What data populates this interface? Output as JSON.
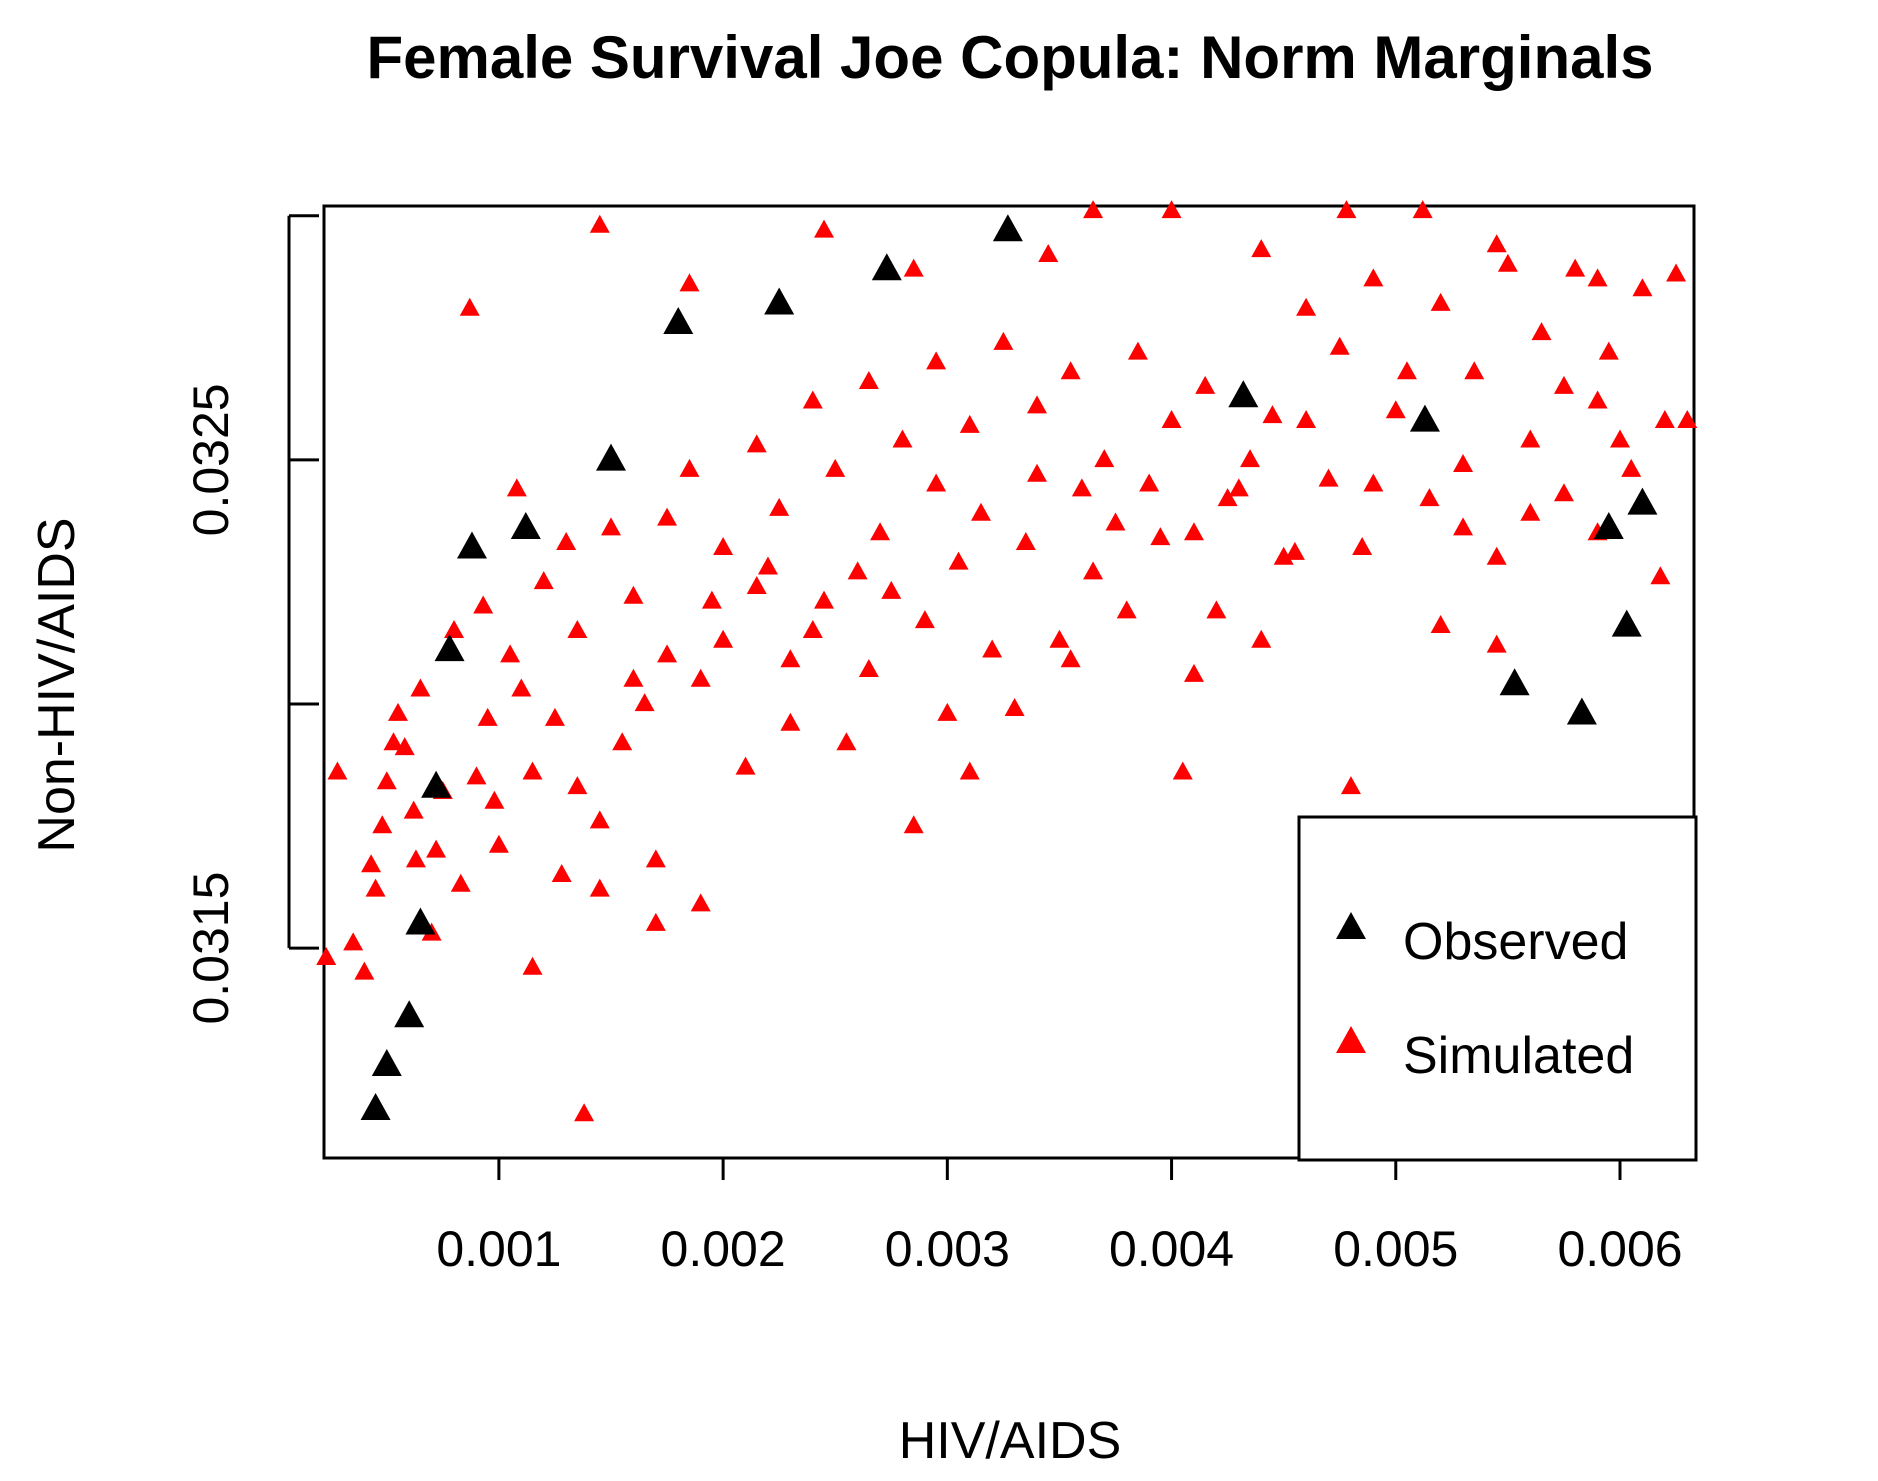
{
  "chart_data": {
    "type": "scatter",
    "title": "Female Survival Joe Copula: Norm Marginals",
    "xlabel": "HIV/AIDS",
    "ylabel": "Non-HIV/AIDS",
    "xlim": [
      0.00022,
      0.00633
    ],
    "ylim": [
      0.03107,
      0.03302
    ],
    "x_ticks": [
      {
        "value": 0.001,
        "label": "0.001"
      },
      {
        "value": 0.002,
        "label": "0.002"
      },
      {
        "value": 0.003,
        "label": "0.003"
      },
      {
        "value": 0.004,
        "label": "0.004"
      },
      {
        "value": 0.005,
        "label": "0.005"
      },
      {
        "value": 0.006,
        "label": "0.006"
      }
    ],
    "y_ticks": [
      {
        "value": 0.0315,
        "label": "0.0315"
      },
      {
        "value": 0.032,
        "label": ""
      },
      {
        "value": 0.0325,
        "label": "0.0325"
      },
      {
        "value": 0.033,
        "label": ""
      }
    ],
    "legend": {
      "position": "bottom-right",
      "entries": [
        {
          "label": "Observed",
          "color": "#000000"
        },
        {
          "label": "Simulated",
          "color": "#ff0000"
        }
      ]
    },
    "series": [
      {
        "name": "Observed",
        "color": "#000000",
        "points": [
          [
            0.00045,
            0.03117
          ],
          [
            0.0005,
            0.03126
          ],
          [
            0.0006,
            0.03136
          ],
          [
            0.00065,
            0.03155
          ],
          [
            0.00072,
            0.03183
          ],
          [
            0.00078,
            0.03211
          ],
          [
            0.00088,
            0.03232
          ],
          [
            0.00112,
            0.03236
          ],
          [
            0.0015,
            0.0325
          ],
          [
            0.0018,
            0.03278
          ],
          [
            0.00225,
            0.03282
          ],
          [
            0.00273,
            0.03289
          ],
          [
            0.00327,
            0.03297
          ],
          [
            0.00432,
            0.03263
          ],
          [
            0.00513,
            0.03258
          ],
          [
            0.00553,
            0.03204
          ],
          [
            0.00583,
            0.03198
          ],
          [
            0.00595,
            0.03236
          ],
          [
            0.00603,
            0.03216
          ],
          [
            0.0061,
            0.03241
          ]
        ]
      },
      {
        "name": "Simulated",
        "color": "#ff0000",
        "points": [
          [
            0.00023,
            0.03148
          ],
          [
            0.00028,
            0.03186
          ],
          [
            0.00035,
            0.03151
          ],
          [
            0.0004,
            0.03145
          ],
          [
            0.00045,
            0.03162
          ],
          [
            0.00048,
            0.03175
          ],
          [
            0.00053,
            0.03192
          ],
          [
            0.00058,
            0.03191
          ],
          [
            0.00063,
            0.03168
          ],
          [
            0.0007,
            0.03153
          ],
          [
            0.00075,
            0.03182
          ],
          [
            0.00083,
            0.03163
          ],
          [
            0.0009,
            0.03185
          ],
          [
            0.001,
            0.03171
          ],
          [
            0.0011,
            0.03203
          ],
          [
            0.00115,
            0.03186
          ],
          [
            0.00125,
            0.03197
          ],
          [
            0.00135,
            0.03183
          ],
          [
            0.00145,
            0.03176
          ],
          [
            0.00155,
            0.03192
          ],
          [
            0.00165,
            0.032
          ],
          [
            0.00175,
            0.0321
          ],
          [
            0.0019,
            0.03205
          ],
          [
            0.002,
            0.03213
          ],
          [
            0.00215,
            0.03224
          ],
          [
            0.0023,
            0.03209
          ],
          [
            0.00245,
            0.03221
          ],
          [
            0.0026,
            0.03227
          ],
          [
            0.00275,
            0.03223
          ],
          [
            0.0029,
            0.03217
          ],
          [
            0.00305,
            0.03229
          ],
          [
            0.0032,
            0.03211
          ],
          [
            0.00335,
            0.03233
          ],
          [
            0.0035,
            0.03213
          ],
          [
            0.00365,
            0.03227
          ],
          [
            0.0038,
            0.03219
          ],
          [
            0.00395,
            0.03234
          ],
          [
            0.0041,
            0.03206
          ],
          [
            0.00425,
            0.03242
          ],
          [
            0.0044,
            0.03213
          ],
          [
            0.00455,
            0.03231
          ],
          [
            0.0047,
            0.03246
          ],
          [
            0.00485,
            0.03232
          ],
          [
            0.005,
            0.0326
          ],
          [
            0.00515,
            0.03242
          ],
          [
            0.0053,
            0.03249
          ],
          [
            0.00545,
            0.0323
          ],
          [
            0.0056,
            0.03254
          ],
          [
            0.00575,
            0.03243
          ],
          [
            0.0059,
            0.03262
          ],
          [
            0.00605,
            0.03248
          ],
          [
            0.0062,
            0.03258
          ],
          [
            0.0005,
            0.03184
          ],
          [
            0.00062,
            0.03178
          ],
          [
            0.0008,
            0.03215
          ],
          [
            0.00095,
            0.03197
          ],
          [
            0.00105,
            0.0321
          ],
          [
            0.0012,
            0.03225
          ],
          [
            0.00135,
            0.03215
          ],
          [
            0.0015,
            0.03236
          ],
          [
            0.0016,
            0.03222
          ],
          [
            0.00175,
            0.03238
          ],
          [
            0.00185,
            0.03248
          ],
          [
            0.002,
            0.03232
          ],
          [
            0.00215,
            0.03253
          ],
          [
            0.00225,
            0.0324
          ],
          [
            0.0024,
            0.03262
          ],
          [
            0.0025,
            0.03248
          ],
          [
            0.00265,
            0.03266
          ],
          [
            0.0028,
            0.03254
          ],
          [
            0.00295,
            0.0327
          ],
          [
            0.0031,
            0.03257
          ],
          [
            0.00325,
            0.03274
          ],
          [
            0.0034,
            0.03261
          ],
          [
            0.00355,
            0.03268
          ],
          [
            0.0037,
            0.0325
          ],
          [
            0.00385,
            0.03272
          ],
          [
            0.004,
            0.03258
          ],
          [
            0.00415,
            0.03265
          ],
          [
            0.0043,
            0.03244
          ],
          [
            0.00445,
            0.03259
          ],
          [
            0.0046,
            0.03281
          ],
          [
            0.00475,
            0.03273
          ],
          [
            0.0049,
            0.03287
          ],
          [
            0.00505,
            0.03268
          ],
          [
            0.0052,
            0.03282
          ],
          [
            0.00535,
            0.03268
          ],
          [
            0.0055,
            0.0329
          ],
          [
            0.00565,
            0.03276
          ],
          [
            0.0058,
            0.03289
          ],
          [
            0.00595,
            0.03272
          ],
          [
            0.0061,
            0.03285
          ],
          [
            0.00625,
            0.03288
          ],
          [
            0.0063,
            0.03258
          ],
          [
            0.00087,
            0.03281
          ],
          [
            0.00145,
            0.03298
          ],
          [
            0.00185,
            0.03286
          ],
          [
            0.00245,
            0.03297
          ],
          [
            0.00285,
            0.03289
          ],
          [
            0.00345,
            0.03292
          ],
          [
            0.00365,
            0.03301
          ],
          [
            0.004,
            0.03301
          ],
          [
            0.0044,
            0.03293
          ],
          [
            0.00478,
            0.03301
          ],
          [
            0.00512,
            0.03301
          ],
          [
            0.00545,
            0.03294
          ],
          [
            0.0059,
            0.03287
          ],
          [
            0.00138,
            0.03116
          ],
          [
            0.00043,
            0.03167
          ],
          [
            0.00065,
            0.03203
          ],
          [
            0.00098,
            0.0318
          ],
          [
            0.00128,
            0.03165
          ],
          [
            0.0017,
            0.03168
          ],
          [
            0.0021,
            0.03187
          ],
          [
            0.0023,
            0.03196
          ],
          [
            0.00255,
            0.03192
          ],
          [
            0.00265,
            0.03207
          ],
          [
            0.00285,
            0.03175
          ],
          [
            0.003,
            0.03198
          ],
          [
            0.0031,
            0.03186
          ],
          [
            0.0033,
            0.03199
          ],
          [
            0.00355,
            0.03209
          ],
          [
            0.00375,
            0.03237
          ],
          [
            0.00405,
            0.03186
          ],
          [
            0.0042,
            0.03219
          ],
          [
            0.0045,
            0.0323
          ],
          [
            0.0048,
            0.03183
          ],
          [
            0.0052,
            0.03216
          ],
          [
            0.00545,
            0.03212
          ],
          [
            0.0056,
            0.03239
          ],
          [
            0.0059,
            0.03235
          ],
          [
            0.00618,
            0.03226
          ],
          [
            0.00115,
            0.03146
          ],
          [
            0.00145,
            0.03162
          ],
          [
            0.0017,
            0.03155
          ],
          [
            0.0019,
            0.03159
          ],
          [
            0.00055,
            0.03198
          ],
          [
            0.00072,
            0.0317
          ],
          [
            0.00093,
            0.0322
          ],
          [
            0.00108,
            0.03244
          ],
          [
            0.0013,
            0.03233
          ],
          [
            0.0016,
            0.03205
          ],
          [
            0.00195,
            0.03221
          ],
          [
            0.0022,
            0.03228
          ],
          [
            0.0024,
            0.03215
          ],
          [
            0.0027,
            0.03235
          ],
          [
            0.00295,
            0.03245
          ],
          [
            0.00315,
            0.03239
          ],
          [
            0.0034,
            0.03247
          ],
          [
            0.0036,
            0.03244
          ],
          [
            0.0039,
            0.03245
          ],
          [
            0.0041,
            0.03235
          ],
          [
            0.00435,
            0.0325
          ],
          [
            0.0046,
            0.03258
          ],
          [
            0.0049,
            0.03245
          ],
          [
            0.0053,
            0.03236
          ],
          [
            0.00575,
            0.03265
          ],
          [
            0.006,
            0.03254
          ]
        ]
      }
    ]
  }
}
